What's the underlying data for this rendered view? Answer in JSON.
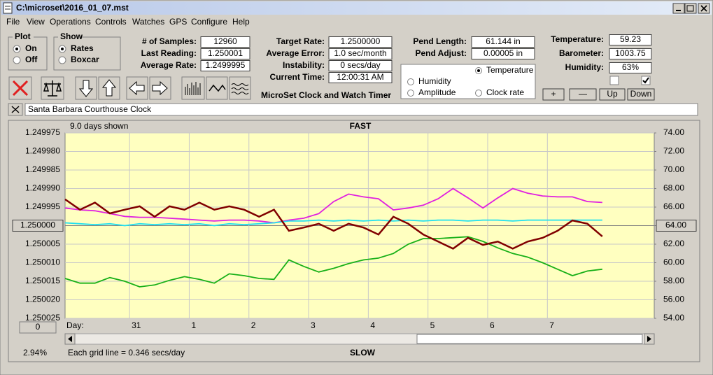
{
  "window": {
    "title": "C:\\microset\\2016_01_07.mst"
  },
  "menu": [
    "File",
    "View",
    "Operations",
    "Controls",
    "Watches",
    "GPS",
    "Configure",
    "Help"
  ],
  "plot_group": {
    "title": "Plot",
    "options": [
      "On",
      "Off"
    ],
    "selected": 0
  },
  "show_group": {
    "title": "Show",
    "options": [
      "Rates",
      "Boxcar"
    ],
    "selected": 0
  },
  "readings": [
    [
      {
        "label": "# of Samples:",
        "value": "12960"
      },
      {
        "label": "Last Reading:",
        "value": "1.250001"
      },
      {
        "label": "Average Rate:",
        "value": "1.2499995"
      }
    ],
    [
      {
        "label": "Target Rate:",
        "value": "1.2500000"
      },
      {
        "label": "Average Error:",
        "value": "1.0 sec/month"
      },
      {
        "label": "Instability:",
        "value": "0 secs/day"
      },
      {
        "label": "Current Time:",
        "value": "12:00:31 AM"
      }
    ],
    [
      {
        "label": "Pend Length:",
        "value": "61.144 in"
      },
      {
        "label": "Pend Adjust:",
        "value": "0.00005 in"
      }
    ],
    [
      {
        "label": "Temperature:",
        "value": "59.23"
      },
      {
        "label": "Barometer:",
        "value": "1003.75"
      },
      {
        "label": "Humidity:",
        "value": "63%"
      }
    ]
  ],
  "app_name": "MicroSet Clock and Watch Timer",
  "checkboxes": [
    false,
    true
  ],
  "buttons": [
    "+",
    "—",
    "Up",
    "Down"
  ],
  "location": "Santa Barbara Courthouse Clock",
  "chart_data": {
    "type": "line",
    "top_note": "9.0 days shown",
    "top_label": "FAST",
    "bottom_label": "SLOW",
    "x_label": "Day:",
    "zoom": "0",
    "grid": true,
    "background": "#ffffc0",
    "legend_selected": "Temperature",
    "xlim": [
      0,
      9.87
    ],
    "xticks": [
      {
        "value": 1.08,
        "label": "31"
      },
      {
        "value": 2.08,
        "label": "1"
      },
      {
        "value": 3.08,
        "label": "2"
      },
      {
        "value": 4.08,
        "label": "3"
      },
      {
        "value": 5.08,
        "label": "4"
      },
      {
        "value": 6.08,
        "label": "5"
      },
      {
        "value": 7.08,
        "label": "6"
      },
      {
        "value": 8.08,
        "label": "7"
      }
    ],
    "ylim": [
      1.250025,
      1.249975
    ],
    "yticks": [
      {
        "value": 1.249975,
        "label": "1.249975"
      },
      {
        "value": 1.24998,
        "label": "1.249980"
      },
      {
        "value": 1.249985,
        "label": "1.249985"
      },
      {
        "value": 1.24999,
        "label": "1.249990"
      },
      {
        "value": 1.249995,
        "label": "1.249995"
      },
      {
        "value": 1.25,
        "label": "1.250000"
      },
      {
        "value": 1.250005,
        "label": "1.250005"
      },
      {
        "value": 1.25001,
        "label": "1.250010"
      },
      {
        "value": 1.250015,
        "label": "1.250015"
      },
      {
        "value": 1.25002,
        "label": "1.250020"
      },
      {
        "value": 1.250025,
        "label": "1.250025"
      }
    ],
    "y2lim": [
      54,
      74
    ],
    "y2ticks": [
      {
        "value": 74,
        "label": "74.00"
      },
      {
        "value": 72,
        "label": "72.00"
      },
      {
        "value": 70,
        "label": "70.00"
      },
      {
        "value": 68,
        "label": "68.00"
      },
      {
        "value": 66,
        "label": "66.00"
      },
      {
        "value": 64,
        "label": "64.00"
      },
      {
        "value": 62,
        "label": "62.00"
      },
      {
        "value": 60,
        "label": "60.00"
      },
      {
        "value": 58,
        "label": "58.00"
      },
      {
        "value": 56,
        "label": "56.00"
      },
      {
        "value": 54,
        "label": "54.00"
      }
    ],
    "x": [
      0,
      0.25,
      0.5,
      0.75,
      1,
      1.25,
      1.5,
      1.75,
      2,
      2.25,
      2.5,
      2.75,
      3,
      3.25,
      3.5,
      3.75,
      4,
      4.25,
      4.5,
      4.75,
      5,
      5.25,
      5.5,
      5.75,
      6,
      6.25,
      6.5,
      6.75,
      7,
      7.25,
      7.5,
      7.75,
      8,
      8.25,
      8.5,
      8.75,
      9
    ],
    "series": [
      {
        "name": "Temperature",
        "color": "#18b018",
        "axis": "y2",
        "values": [
          58.3,
          57.8,
          57.8,
          58.4,
          58.0,
          57.4,
          57.6,
          58.1,
          58.5,
          58.2,
          57.8,
          58.8,
          58.6,
          58.3,
          58.2,
          60.3,
          59.6,
          59.0,
          59.4,
          59.9,
          60.3,
          60.5,
          61.0,
          62.0,
          62.6,
          62.6,
          62.7,
          62.8,
          62.3,
          61.6,
          61.0,
          60.6,
          60.0,
          59.3,
          58.6,
          59.1,
          59.3
        ]
      },
      {
        "name": "Humidity",
        "color": "#e020e0",
        "axis": "y2",
        "values": [
          65.9,
          65.7,
          65.6,
          65.3,
          65.0,
          64.9,
          64.9,
          64.8,
          64.7,
          64.6,
          64.5,
          64.6,
          64.6,
          64.5,
          64.3,
          64.6,
          64.8,
          65.3,
          66.6,
          67.4,
          67.1,
          66.9,
          65.7,
          65.9,
          66.2,
          66.9,
          68.0,
          67.0,
          65.9,
          67.0,
          68.0,
          67.5,
          67.2,
          67.1,
          67.1,
          66.6,
          66.5
        ]
      },
      {
        "name": "Amplitude",
        "color": "#20e0f0",
        "axis": "y2",
        "values": [
          64.3,
          64.2,
          64.1,
          64.2,
          64.0,
          64.2,
          64.1,
          64.2,
          64.1,
          64.2,
          64.0,
          64.2,
          64.1,
          64.2,
          64.3,
          64.5,
          64.5,
          64.6,
          64.5,
          64.6,
          64.5,
          64.6,
          64.5,
          64.6,
          64.5,
          64.6,
          64.6,
          64.5,
          64.6,
          64.6,
          64.5,
          64.6,
          64.6,
          64.6,
          64.6,
          64.6,
          64.6
        ]
      },
      {
        "name": "Clock rate",
        "color": "#800000",
        "axis": "y",
        "values": [
          1.2499929,
          1.2499957,
          1.2499938,
          1.2499967,
          1.2499957,
          1.2499948,
          1.2499976,
          1.2499948,
          1.2499957,
          1.2499938,
          1.2499957,
          1.2499948,
          1.2499957,
          1.2499976,
          1.2499957,
          1.2500014,
          1.2500005,
          1.2499995,
          1.2500014,
          1.2499995,
          1.2500005,
          1.2500024,
          1.2499976,
          1.2499995,
          1.2500024,
          1.2500043,
          1.2500062,
          1.2500033,
          1.2500052,
          1.2500043,
          1.2500062,
          1.2500043,
          1.2500033,
          1.2500014,
          1.2499986,
          1.2499995,
          1.2500029
        ]
      }
    ]
  },
  "status": {
    "left": "2.94%",
    "grid_note": "Each grid line = 0.346 secs/day"
  }
}
